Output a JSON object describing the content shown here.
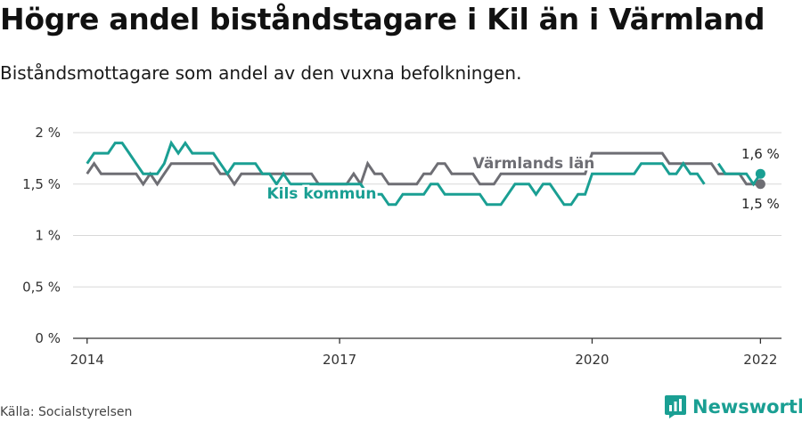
{
  "title": "Högre andel biståndstagare i Kil än i Värmland",
  "subtitle": "Biståndsmottagare som andel av den vuxna befolkningen.",
  "source": "Källa: Socialstyrelsen",
  "brand": "Newsworthy",
  "colors": {
    "kil": "#1a9f93",
    "varmland": "#6e6e74",
    "grid": "#d8d8d8",
    "axis": "#333333"
  },
  "chart_data": {
    "type": "line",
    "title": "Högre andel biståndstagare i Kil än i Värmland",
    "subtitle": "Biståndsmottagare som andel av den vuxna befolkningen.",
    "ylim": [
      0,
      2
    ],
    "y_ticks": [
      {
        "value": 0,
        "label": "0 %"
      },
      {
        "value": 0.5,
        "label": "0,5 %"
      },
      {
        "value": 1,
        "label": "1 %"
      },
      {
        "value": 1.5,
        "label": "1,5 %"
      },
      {
        "value": 2,
        "label": "2 %"
      }
    ],
    "x_ticks": [
      {
        "value": "2014-01",
        "label": "2014"
      },
      {
        "value": "2017-01",
        "label": "2017"
      },
      {
        "value": "2020-01",
        "label": "2020"
      },
      {
        "value": "2022-01",
        "label": "2022"
      }
    ],
    "x_range": [
      "2013-11",
      "2022-04"
    ],
    "x": [
      "2014-01",
      "2014-02",
      "2014-03",
      "2014-04",
      "2014-05",
      "2014-06",
      "2014-07",
      "2014-08",
      "2014-09",
      "2014-10",
      "2014-11",
      "2014-12",
      "2015-01",
      "2015-02",
      "2015-03",
      "2015-04",
      "2015-05",
      "2015-06",
      "2015-07",
      "2015-08",
      "2015-09",
      "2015-10",
      "2015-11",
      "2015-12",
      "2016-01",
      "2016-02",
      "2016-03",
      "2016-04",
      "2016-05",
      "2016-06",
      "2016-07",
      "2016-08",
      "2016-09",
      "2016-10",
      "2016-11",
      "2016-12",
      "2017-01",
      "2017-02",
      "2017-03",
      "2017-04",
      "2017-05",
      "2017-06",
      "2017-07",
      "2017-08",
      "2017-09",
      "2017-10",
      "2017-11",
      "2017-12",
      "2018-01",
      "2018-02",
      "2018-03",
      "2018-04",
      "2018-05",
      "2018-06",
      "2018-07",
      "2018-08",
      "2018-09",
      "2018-10",
      "2018-11",
      "2018-12",
      "2019-01",
      "2019-02",
      "2019-03",
      "2019-04",
      "2019-05",
      "2019-06",
      "2019-07",
      "2019-08",
      "2019-09",
      "2019-10",
      "2019-11",
      "2019-12",
      "2020-01",
      "2020-02",
      "2020-03",
      "2020-04",
      "2020-05",
      "2020-06",
      "2020-07",
      "2020-08",
      "2020-09",
      "2020-10",
      "2020-11",
      "2020-12",
      "2021-01",
      "2021-02",
      "2021-03",
      "2021-04",
      "2021-05",
      "2021-06",
      "2021-07",
      "2021-08",
      "2021-09",
      "2021-10",
      "2021-11",
      "2021-12",
      "2022-01"
    ],
    "series": [
      {
        "name": "Värmlands län",
        "values": [
          1.6,
          1.7,
          1.6,
          1.6,
          1.6,
          1.6,
          1.6,
          1.6,
          1.5,
          1.6,
          1.5,
          1.6,
          1.7,
          1.7,
          1.7,
          1.7,
          1.7,
          1.7,
          1.7,
          1.6,
          1.6,
          1.5,
          1.6,
          1.6,
          1.6,
          1.6,
          1.6,
          1.6,
          1.6,
          1.6,
          1.6,
          1.6,
          1.6,
          1.5,
          1.5,
          1.5,
          1.5,
          1.5,
          1.6,
          1.5,
          1.7,
          1.6,
          1.6,
          1.5,
          1.5,
          1.5,
          1.5,
          1.5,
          1.6,
          1.6,
          1.7,
          1.7,
          1.6,
          1.6,
          1.6,
          1.6,
          1.5,
          1.5,
          1.5,
          1.6,
          1.6,
          1.6,
          1.6,
          1.6,
          1.6,
          1.6,
          1.6,
          1.6,
          1.6,
          1.6,
          1.6,
          1.6,
          1.8,
          1.8,
          1.8,
          1.8,
          1.8,
          1.8,
          1.8,
          1.8,
          1.8,
          1.8,
          1.8,
          1.7,
          1.7,
          1.7,
          1.7,
          1.7,
          1.7,
          1.7,
          1.6,
          1.6,
          1.6,
          1.6,
          1.5,
          1.5,
          1.5
        ],
        "end_label": "1,5 %"
      },
      {
        "name": "Kils kommun",
        "values": [
          1.7,
          1.8,
          1.8,
          1.8,
          1.9,
          1.9,
          1.8,
          1.7,
          1.6,
          1.6,
          1.6,
          1.7,
          1.9,
          1.8,
          1.9,
          1.8,
          1.8,
          1.8,
          1.8,
          1.7,
          1.6,
          1.7,
          1.7,
          1.7,
          1.7,
          1.6,
          1.6,
          1.5,
          1.6,
          1.5,
          1.5,
          1.5,
          1.5,
          1.5,
          1.5,
          1.5,
          1.5,
          1.5,
          1.5,
          1.5,
          1.4,
          1.4,
          1.4,
          1.3,
          1.3,
          1.4,
          1.4,
          1.4,
          1.4,
          1.5,
          1.5,
          1.4,
          1.4,
          1.4,
          1.4,
          1.4,
          1.4,
          1.3,
          1.3,
          1.3,
          1.4,
          1.5,
          1.5,
          1.5,
          1.4,
          1.5,
          1.5,
          1.4,
          1.3,
          1.3,
          1.4,
          1.4,
          1.6,
          1.6,
          1.6,
          1.6,
          1.6,
          1.6,
          1.6,
          1.7,
          1.7,
          1.7,
          1.7,
          1.6,
          1.6,
          1.7,
          1.6,
          1.6,
          1.5,
          null,
          1.7,
          1.6,
          1.6,
          1.6,
          1.6,
          1.5,
          1.6
        ],
        "end_label": "1,6 %"
      }
    ]
  }
}
